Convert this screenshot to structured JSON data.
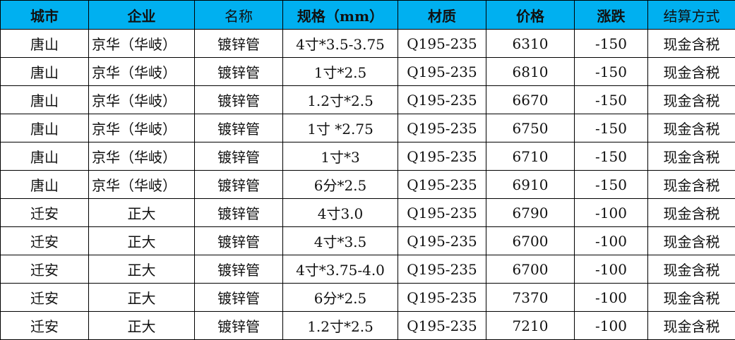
{
  "header": {
    "bg_color": "#00b0f0",
    "columns": [
      "城市",
      "企业",
      "名称",
      "规格（mm）",
      "材质",
      "价格",
      "涨跌",
      "结算方式"
    ]
  },
  "rows": [
    [
      "唐山",
      "京华（华岐）",
      "镀锌管",
      "4寸*3.5-3.75",
      "Q195-235",
      "6310",
      "-150",
      "现金含税"
    ],
    [
      "唐山",
      "京华（华岐）",
      "镀锌管",
      "1寸*2.5",
      "Q195-235",
      "6810",
      "-150",
      "现金含税"
    ],
    [
      "唐山",
      "京华（华岐）",
      "镀锌管",
      "1.2寸*2.5",
      "Q195-235",
      "6670",
      "-150",
      "现金含税"
    ],
    [
      "唐山",
      "京华（华岐）",
      "镀锌管",
      "1寸 *2.75",
      "Q195-235",
      "6750",
      "-150",
      "现金含税"
    ],
    [
      "唐山",
      "京华（华岐）",
      "镀锌管",
      "1寸*3",
      "Q195-235",
      "6710",
      "-150",
      "现金含税"
    ],
    [
      "唐山",
      "京华（华岐）",
      "镀锌管",
      "6分*2.5",
      "Q195-235",
      "6910",
      "-150",
      "现金含税"
    ],
    [
      "迁安",
      "正大",
      "镀锌管",
      "4寸3.0",
      "Q195-235",
      "6790",
      "-100",
      "现金含税"
    ],
    [
      "迁安",
      "正大",
      "镀锌管",
      "4寸*3.5",
      "Q195-235",
      "6700",
      "-100",
      "现金含税"
    ],
    [
      "迁安",
      "正大",
      "镀锌管",
      "4寸*3.75-4.0",
      "Q195-235",
      "6700",
      "-100",
      "现金含税"
    ],
    [
      "迁安",
      "正大",
      "镀锌管",
      "6分*2.5",
      "Q195-235",
      "7370",
      "-100",
      "现金含税"
    ],
    [
      "迁安",
      "正大",
      "镀锌管",
      "1.2寸*2.5",
      "Q195-235",
      "7210",
      "-100",
      "现金含税"
    ]
  ]
}
